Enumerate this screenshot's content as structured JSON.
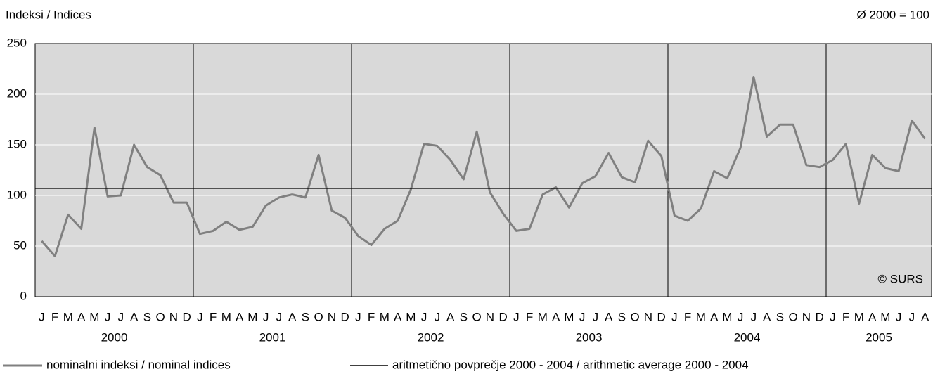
{
  "chart_data": {
    "type": "line",
    "subtitle_left": "Indeksi / Indices",
    "subtitle_right": "Ø  2000 = 100",
    "note": "© SURS",
    "categories": [
      "J",
      "F",
      "M",
      "A",
      "M",
      "J",
      "J",
      "A",
      "S",
      "O",
      "N",
      "D",
      "J",
      "F",
      "M",
      "A",
      "M",
      "J",
      "J",
      "A",
      "S",
      "O",
      "N",
      "D",
      "J",
      "F",
      "M",
      "A",
      "M",
      "J",
      "J",
      "A",
      "S",
      "O",
      "N",
      "D",
      "J",
      "F",
      "M",
      "A",
      "M",
      "J",
      "J",
      "A",
      "S",
      "O",
      "N",
      "D",
      "J",
      "F",
      "M",
      "A",
      "M",
      "J",
      "J",
      "A",
      "S",
      "O",
      "N",
      "D",
      "J",
      "F",
      "M",
      "A",
      "M",
      "J",
      "J",
      "A"
    ],
    "years": [
      "2000",
      "2001",
      "2002",
      "2003",
      "2004",
      "2005"
    ],
    "series": [
      {
        "name": "nominalni indeksi / nominal indices",
        "color": "#808080",
        "values": [
          55,
          40,
          81,
          67,
          167,
          99,
          100,
          150,
          128,
          120,
          93,
          93,
          62,
          65,
          74,
          66,
          69,
          90,
          98,
          101,
          98,
          140,
          85,
          78,
          60,
          51,
          67,
          75,
          106,
          151,
          149,
          135,
          116,
          163,
          103,
          82,
          65,
          67,
          101,
          108,
          88,
          112,
          119,
          142,
          118,
          113,
          154,
          139,
          80,
          75,
          87,
          124,
          117,
          147,
          217,
          158,
          170,
          170,
          130,
          128,
          135,
          151,
          92,
          140,
          127,
          124,
          174,
          156
        ]
      }
    ],
    "average": {
      "name": "aritmetično povprečje 2000 - 2004 / arithmetic average 2000 - 2004",
      "color": "#000000",
      "value": 107
    },
    "ylim": [
      0,
      250
    ],
    "yticks": [
      0,
      50,
      100,
      150,
      200,
      250
    ],
    "grid": true
  }
}
